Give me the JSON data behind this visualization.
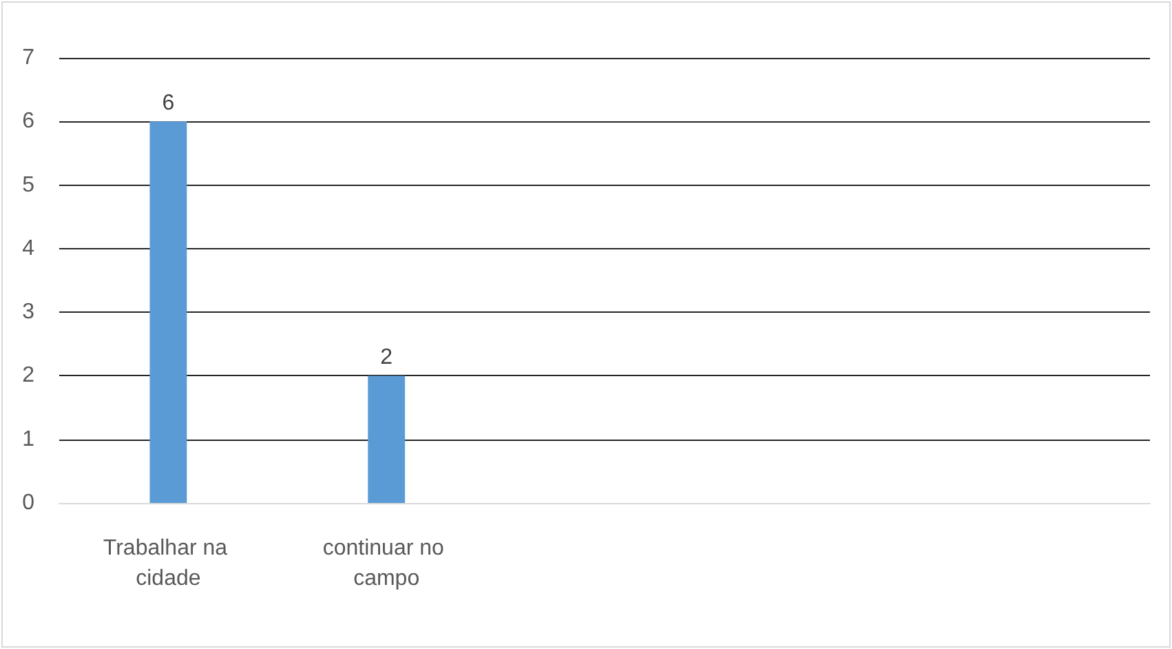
{
  "chart_data": {
    "type": "bar",
    "categories": [
      "Trabalhar na cidade",
      "continuar no campo",
      null,
      null,
      null
    ],
    "values": [
      6,
      2,
      null,
      null,
      null
    ],
    "color": "#5b9bd5",
    "ylim": [
      0,
      7
    ],
    "yticks": [
      0,
      1,
      2,
      3,
      4,
      5,
      6,
      7
    ],
    "grid": "y",
    "data_labels": true
  }
}
